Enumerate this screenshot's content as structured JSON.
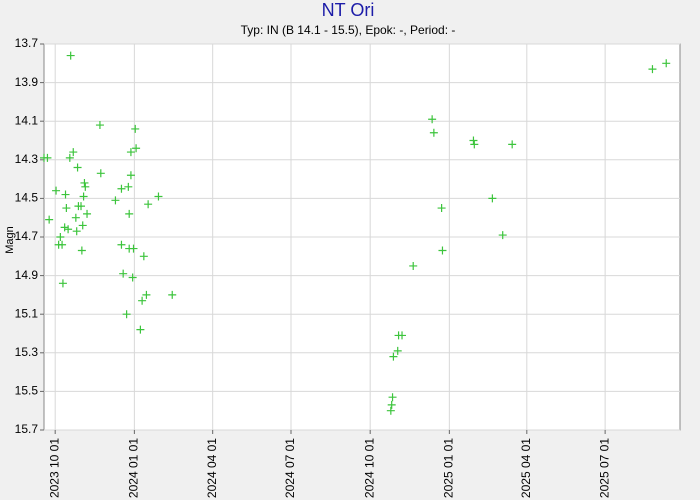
{
  "chart_data": {
    "type": "scatter",
    "title": "NT Ori",
    "subtitle": "Typ: IN (B 14.1 - 15.5), Epok: -, Period: -",
    "y_label": "Magn",
    "x": [
      "2023-09-18",
      "2023-09-22",
      "2023-09-24",
      "2023-10-02",
      "2023-10-05",
      "2023-10-07",
      "2023-10-09",
      "2023-10-10",
      "2023-10-12",
      "2023-10-13",
      "2023-10-14",
      "2023-10-16",
      "2023-10-19",
      "2023-10-18",
      "2023-10-22",
      "2023-10-25",
      "2023-10-26",
      "2023-10-27",
      "2023-10-28",
      "2023-10-31",
      "2023-11-01",
      "2023-11-02",
      "2023-11-03",
      "2023-11-04",
      "2023-11-05",
      "2023-11-07",
      "2023-11-22",
      "2023-11-23",
      "2023-12-10",
      "2023-12-17",
      "2023-12-17",
      "2023-12-19",
      "2023-12-23",
      "2023-12-25",
      "2023-12-26",
      "2023-12-26",
      "2023-12-28",
      "2023-12-28",
      "2023-12-30",
      "2023-12-31",
      "2024-01-02",
      "2024-01-03",
      "2024-01-08",
      "2024-01-10",
      "2024-01-12",
      "2024-01-15",
      "2024-01-17",
      "2024-01-29",
      "2024-02-14",
      "2024-10-25",
      "2024-10-26",
      "2024-10-27",
      "2024-10-28",
      "2024-11-02",
      "2024-11-03",
      "2024-11-07",
      "2024-11-20",
      "2024-12-12",
      "2024-12-14",
      "2024-12-23",
      "2024-12-24",
      "2025-01-29",
      "2025-01-30",
      "2025-02-20",
      "2025-03-04",
      "2025-03-15",
      "2025-08-25",
      "2025-09-10"
    ],
    "values": [
      14.29,
      14.29,
      14.61,
      14.46,
      14.74,
      14.7,
      14.74,
      14.94,
      14.65,
      14.48,
      14.55,
      14.66,
      13.76,
      14.29,
      14.26,
      14.6,
      14.67,
      14.34,
      14.54,
      14.54,
      14.77,
      14.64,
      14.49,
      14.42,
      14.44,
      14.58,
      14.12,
      14.37,
      14.51,
      14.74,
      14.45,
      14.89,
      15.1,
      14.44,
      14.58,
      14.76,
      14.38,
      14.26,
      14.91,
      14.76,
      14.14,
      14.24,
      15.18,
      15.03,
      14.8,
      15.0,
      14.53,
      14.49,
      15.0,
      15.6,
      15.57,
      15.53,
      15.32,
      15.29,
      15.21,
      15.21,
      14.85,
      14.09,
      14.16,
      14.55,
      14.77,
      14.2,
      14.22,
      14.5,
      14.69,
      14.22,
      13.83,
      13.8
    ],
    "color": "#3cc43c",
    "xlim": [
      "2023-09-18",
      "2025-09-26"
    ],
    "xticks": [
      {
        "value": "2023-10-01",
        "label": "2023 10 01"
      },
      {
        "value": "2024-01-01",
        "label": "2024 01 01"
      },
      {
        "value": "2024-04-01",
        "label": "2024 04 01"
      },
      {
        "value": "2024-07-01",
        "label": "2024 07 01"
      },
      {
        "value": "2024-10-01",
        "label": "2024 10 01"
      },
      {
        "value": "2025-01-01",
        "label": "2025 01 01"
      },
      {
        "value": "2025-04-01",
        "label": "2025 04 01"
      },
      {
        "value": "2025-07-01",
        "label": "2025 07 01"
      }
    ],
    "ylim": [
      13.7,
      15.7
    ],
    "y_inverted": true,
    "yticks": [
      13.7,
      13.9,
      14.1,
      14.3,
      14.5,
      14.7,
      14.9,
      15.1,
      15.3,
      15.5,
      15.7
    ],
    "grid": true
  }
}
